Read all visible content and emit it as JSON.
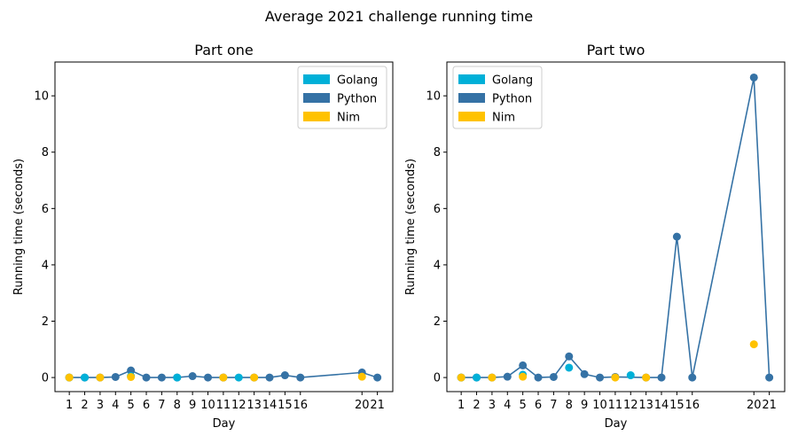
{
  "suptitle": "Average 2021 challenge running time",
  "chart_data": [
    {
      "type": "line",
      "title": "Part one",
      "xlabel": "Day",
      "ylabel": "Running time (seconds)",
      "ylim": [
        -0.5,
        11.2
      ],
      "yticks": [
        0,
        2,
        4,
        6,
        8,
        10
      ],
      "x_tick_labels": [
        "1",
        "2",
        "3",
        "4",
        "5",
        "6",
        "7",
        "8",
        "9",
        "10",
        "11",
        "12",
        "13",
        "14",
        "15",
        "16",
        "20",
        "21"
      ],
      "legend_position": "upper right",
      "series": [
        {
          "name": "Golang",
          "color": "#00b0d8",
          "style": "markers",
          "x": [
            1,
            2,
            5,
            8,
            12
          ],
          "y": [
            0,
            0,
            0.05,
            0,
            0
          ]
        },
        {
          "name": "Python",
          "color": "#3572a5",
          "style": "line+markers",
          "x": [
            1,
            2,
            3,
            4,
            5,
            6,
            7,
            8,
            9,
            10,
            11,
            13,
            14,
            15,
            16,
            20,
            21
          ],
          "y": [
            0,
            0,
            0,
            0.02,
            0.25,
            0,
            0,
            0,
            0.05,
            0,
            0,
            0,
            0,
            0.08,
            0,
            0.18,
            0
          ]
        },
        {
          "name": "Nim",
          "color": "#ffc200",
          "style": "markers",
          "x": [
            1,
            3,
            5,
            11,
            13,
            20
          ],
          "y": [
            0,
            0,
            0.02,
            0,
            0,
            0.03
          ]
        }
      ]
    },
    {
      "type": "line",
      "title": "Part two",
      "xlabel": "Day",
      "ylabel": "Running time (seconds)",
      "ylim": [
        -0.5,
        11.2
      ],
      "yticks": [
        0,
        2,
        4,
        6,
        8,
        10
      ],
      "x_tick_labels": [
        "1",
        "2",
        "3",
        "4",
        "5",
        "6",
        "7",
        "8",
        "9",
        "10",
        "11",
        "12",
        "13",
        "14",
        "15",
        "16",
        "20",
        "21"
      ],
      "legend_position": "upper left",
      "series": [
        {
          "name": "Golang",
          "color": "#00b0d8",
          "style": "markers",
          "x": [
            1,
            2,
            5,
            8,
            12
          ],
          "y": [
            0,
            0,
            0.1,
            0.35,
            0.08
          ]
        },
        {
          "name": "Python",
          "color": "#3572a5",
          "style": "line+markers",
          "x": [
            1,
            2,
            3,
            4,
            5,
            6,
            7,
            8,
            9,
            10,
            11,
            13,
            14,
            15,
            16,
            20,
            21
          ],
          "y": [
            0,
            0,
            0,
            0.03,
            0.43,
            0,
            0.02,
            0.75,
            0.12,
            0,
            0.02,
            0,
            0,
            5.0,
            0,
            10.65,
            0
          ]
        },
        {
          "name": "Nim",
          "color": "#ffc200",
          "style": "markers",
          "x": [
            1,
            3,
            5,
            11,
            13,
            20
          ],
          "y": [
            0,
            0,
            0.03,
            0,
            0,
            1.18
          ]
        }
      ]
    }
  ]
}
